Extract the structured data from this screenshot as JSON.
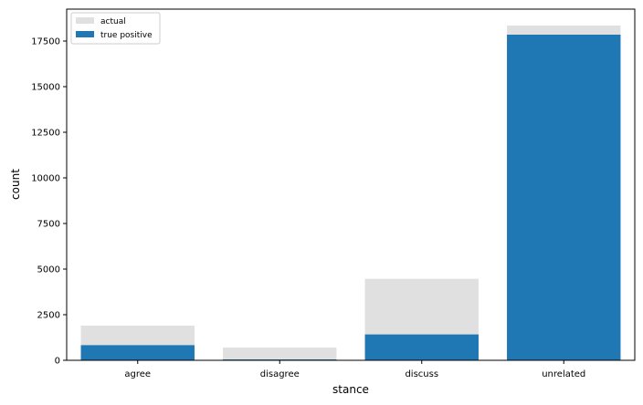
{
  "chart_data": {
    "type": "bar",
    "categories": [
      "agree",
      "disagree",
      "discuss",
      "unrelated"
    ],
    "series": [
      {
        "name": "actual",
        "values": [
          1903,
          697,
          4464,
          18349
        ],
        "color": "#e0e0e0"
      },
      {
        "name": "true positive",
        "values": [
          830,
          45,
          1418,
          17850
        ],
        "color": "#1f77b4"
      }
    ],
    "xlabel": "stance",
    "ylabel": "count",
    "ylim": [
      0,
      19250
    ],
    "yticks": [
      0,
      2500,
      5000,
      7500,
      10000,
      12500,
      15000,
      17500
    ],
    "legend_position": "top-left",
    "grid": false
  }
}
